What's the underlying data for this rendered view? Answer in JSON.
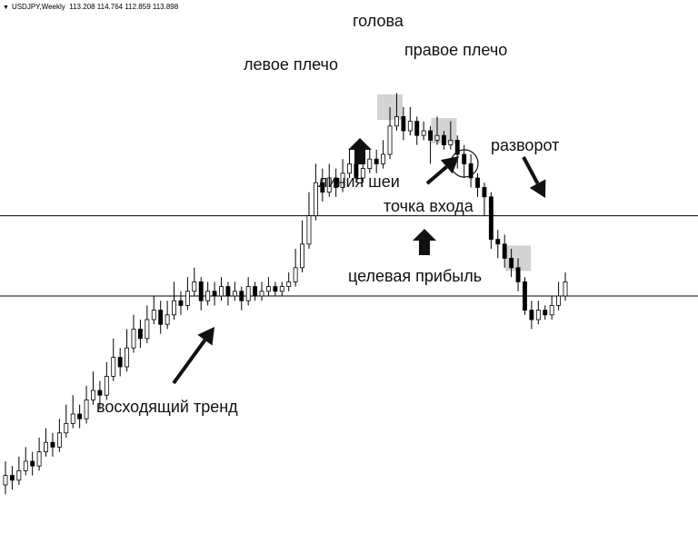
{
  "header": {
    "symbol": "USDJPY,Weekly",
    "ohlc": "113.208 114.764 112.859 113.898"
  },
  "chart_data": {
    "type": "candlestick",
    "title": "",
    "ylim": [
      0,
      100
    ],
    "neckline": 62,
    "target_line": 45,
    "candles": [
      [
        5,
        7,
        10,
        3
      ],
      [
        7,
        6,
        9,
        4
      ],
      [
        6,
        8,
        11,
        5
      ],
      [
        8,
        10,
        13,
        7
      ],
      [
        10,
        9,
        12,
        7
      ],
      [
        9,
        12,
        15,
        8
      ],
      [
        12,
        14,
        17,
        11
      ],
      [
        14,
        13,
        16,
        11
      ],
      [
        13,
        16,
        19,
        12
      ],
      [
        16,
        18,
        22,
        15
      ],
      [
        18,
        20,
        24,
        17
      ],
      [
        20,
        19,
        22,
        17
      ],
      [
        19,
        23,
        26,
        18
      ],
      [
        23,
        25,
        29,
        22
      ],
      [
        25,
        24,
        27,
        21
      ],
      [
        24,
        28,
        31,
        23
      ],
      [
        28,
        32,
        36,
        27
      ],
      [
        32,
        30,
        34,
        28
      ],
      [
        30,
        34,
        38,
        29
      ],
      [
        34,
        38,
        41,
        33
      ],
      [
        38,
        36,
        40,
        34
      ],
      [
        36,
        40,
        43,
        35
      ],
      [
        40,
        42,
        45,
        39
      ],
      [
        42,
        39,
        44,
        37
      ],
      [
        39,
        41,
        44,
        38
      ],
      [
        41,
        44,
        48,
        40
      ],
      [
        44,
        43,
        46,
        41
      ],
      [
        43,
        46,
        49,
        42
      ],
      [
        46,
        48,
        51,
        45
      ],
      [
        48,
        44,
        49,
        42
      ],
      [
        44,
        46,
        48,
        43
      ],
      [
        46,
        45,
        48,
        43
      ],
      [
        45,
        47,
        49,
        44
      ],
      [
        47,
        45,
        48,
        43
      ],
      [
        45,
        46,
        48,
        44
      ],
      [
        46,
        44,
        47,
        42
      ],
      [
        44,
        47,
        49,
        43
      ],
      [
        47,
        45,
        48,
        44
      ],
      [
        45,
        46,
        48,
        44
      ],
      [
        46,
        47,
        49,
        45
      ],
      [
        47,
        46,
        48,
        45
      ],
      [
        46,
        47,
        48,
        45
      ],
      [
        47,
        48,
        50,
        46
      ],
      [
        48,
        51,
        55,
        47
      ],
      [
        51,
        56,
        61,
        50
      ],
      [
        56,
        62,
        67,
        55
      ],
      [
        62,
        69,
        73,
        61
      ],
      [
        69,
        67,
        72,
        65
      ],
      [
        67,
        70,
        73,
        66
      ],
      [
        70,
        68,
        72,
        66
      ],
      [
        68,
        71,
        74,
        67
      ],
      [
        71,
        73,
        76,
        70
      ],
      [
        73,
        70,
        75,
        69
      ],
      [
        70,
        72,
        74,
        69
      ],
      [
        72,
        74,
        76,
        71
      ],
      [
        74,
        73,
        76,
        71
      ],
      [
        73,
        75,
        78,
        72
      ],
      [
        75,
        81,
        85,
        74
      ],
      [
        81,
        83,
        88,
        80
      ],
      [
        83,
        80,
        85,
        78
      ],
      [
        80,
        82,
        85,
        79
      ],
      [
        82,
        79,
        83,
        77
      ],
      [
        79,
        80,
        82,
        78
      ],
      [
        80,
        78,
        81,
        73
      ],
      [
        78,
        79,
        83,
        77
      ],
      [
        79,
        77,
        80,
        76
      ],
      [
        77,
        78,
        82,
        76
      ],
      [
        78,
        75,
        79,
        72
      ],
      [
        75,
        73,
        77,
        70
      ],
      [
        73,
        70,
        75,
        68
      ],
      [
        70,
        68,
        71,
        66
      ],
      [
        68,
        66,
        69,
        62
      ],
      [
        66,
        57,
        67,
        55
      ],
      [
        57,
        56,
        59,
        53
      ],
      [
        56,
        53,
        58,
        51
      ],
      [
        53,
        51,
        55,
        49
      ],
      [
        51,
        48,
        53,
        46
      ],
      [
        48,
        42,
        49,
        41
      ],
      [
        42,
        40,
        44,
        38
      ],
      [
        40,
        42,
        44,
        39
      ],
      [
        42,
        41,
        43,
        40
      ],
      [
        41,
        43,
        45,
        40
      ],
      [
        43,
        45,
        48,
        42
      ],
      [
        45,
        48,
        50,
        44
      ]
    ]
  },
  "annotations": {
    "head": "голова",
    "left_shoulder": "левое плечо",
    "right_shoulder": "правое плечо",
    "reversal": "разворот",
    "neckline": "линия шеи",
    "entry_point": "точка входа",
    "target_profit": "целевая прибыль",
    "uptrend": "восходящий тренд"
  }
}
